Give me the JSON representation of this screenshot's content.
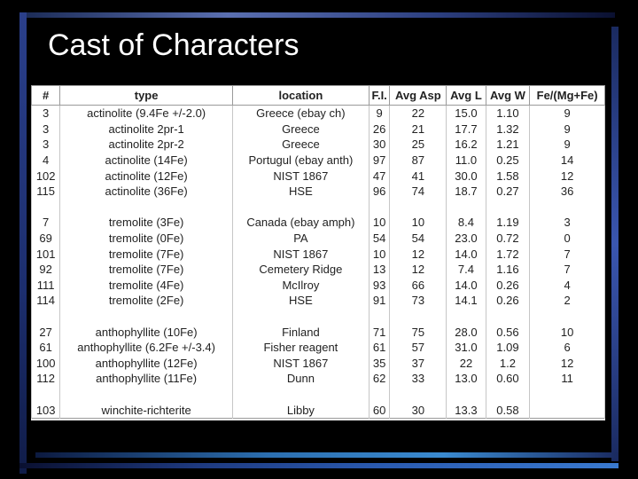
{
  "title": "Cast of Characters",
  "table": {
    "headers": [
      "#",
      "type",
      "location",
      "F.I.",
      "Avg Asp",
      "Avg L",
      "Avg W",
      "Fe/(Mg+Fe)"
    ],
    "rows": [
      [
        "3",
        "actinolite (9.4Fe +/-2.0)",
        "Greece (ebay ch)",
        "9",
        "22",
        "15.0",
        "1.10",
        "9"
      ],
      [
        "3",
        "actinolite 2pr-1",
        "Greece",
        "26",
        "21",
        "17.7",
        "1.32",
        "9"
      ],
      [
        "3",
        "actinolite 2pr-2",
        "Greece",
        "30",
        "25",
        "16.2",
        "1.21",
        "9"
      ],
      [
        "4",
        "actinolite (14Fe)",
        "Portugul (ebay anth)",
        "97",
        "87",
        "11.0",
        "0.25",
        "14"
      ],
      [
        "102",
        "actinolite (12Fe)",
        "NIST 1867",
        "47",
        "41",
        "30.0",
        "1.58",
        "12"
      ],
      [
        "115",
        "actinolite (36Fe)",
        "HSE",
        "96",
        "74",
        "18.7",
        "0.27",
        "36"
      ],
      [
        "",
        "",
        "",
        "",
        "",
        "",
        "",
        ""
      ],
      [
        "7",
        "tremolite (3Fe)",
        "Canada (ebay amph)",
        "10",
        "10",
        "8.4",
        "1.19",
        "3"
      ],
      [
        "69",
        "tremolite (0Fe)",
        "PA",
        "54",
        "54",
        "23.0",
        "0.72",
        "0"
      ],
      [
        "101",
        "tremolite (7Fe)",
        "NIST 1867",
        "10",
        "12",
        "14.0",
        "1.72",
        "7"
      ],
      [
        "92",
        "tremolite (7Fe)",
        "Cemetery Ridge",
        "13",
        "12",
        "7.4",
        "1.16",
        "7"
      ],
      [
        "111",
        "tremolite (4Fe)",
        "McIlroy",
        "93",
        "66",
        "14.0",
        "0.26",
        "4"
      ],
      [
        "114",
        "tremolite (2Fe)",
        "HSE",
        "91",
        "73",
        "14.1",
        "0.26",
        "2"
      ],
      [
        "",
        "",
        "",
        "",
        "",
        "",
        "",
        ""
      ],
      [
        "27",
        "anthophyllite (10Fe)",
        "Finland",
        "71",
        "75",
        "28.0",
        "0.56",
        "10"
      ],
      [
        "61",
        "anthophyllite (6.2Fe +/-3.4)",
        "Fisher reagent",
        "61",
        "57",
        "31.0",
        "1.09",
        "6"
      ],
      [
        "100",
        "anthophyllite (12Fe)",
        "NIST 1867",
        "35",
        "37",
        "22",
        "1.2",
        "12"
      ],
      [
        "112",
        "anthophyllite (11Fe)",
        "Dunn",
        "62",
        "33",
        "13.0",
        "0.60",
        "11"
      ],
      [
        "",
        "",
        "",
        "",
        "",
        "",
        "",
        ""
      ],
      [
        "103",
        "winchite-richterite",
        "Libby",
        "60",
        "30",
        "13.3",
        "0.58",
        ""
      ]
    ]
  }
}
